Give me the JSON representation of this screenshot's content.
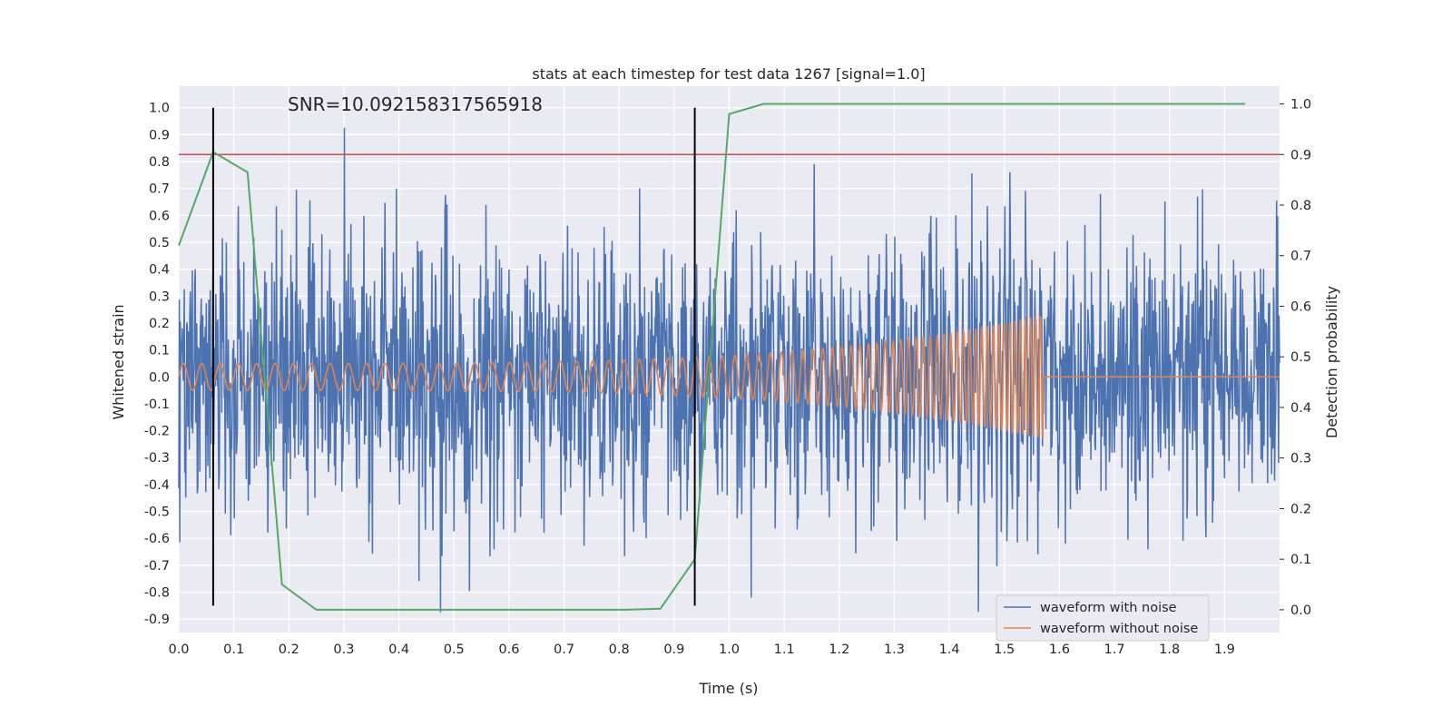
{
  "chart_data": {
    "type": "line",
    "title": "stats at each timestep for test data 1267 [signal=1.0]",
    "annotation": "SNR=10.092158317565918",
    "xlabel": "Time (s)",
    "ylabel_left": "Whitened strain",
    "ylabel_right": "Detection probability",
    "xlim": [
      0.0,
      2.0
    ],
    "ylim_left": [
      -0.95,
      1.08
    ],
    "ylim_right": [
      -0.045,
      1.035
    ],
    "x_ticks": [
      "0.0",
      "0.1",
      "0.2",
      "0.3",
      "0.4",
      "0.5",
      "0.6",
      "0.7",
      "0.8",
      "0.9",
      "1.0",
      "1.1",
      "1.2",
      "1.3",
      "1.4",
      "1.5",
      "1.6",
      "1.7",
      "1.8",
      "1.9"
    ],
    "y_ticks_left": [
      "1.0",
      "0.9",
      "0.8",
      "0.7",
      "0.6",
      "0.5",
      "0.4",
      "0.3",
      "0.2",
      "0.1",
      "0.0",
      "-0.1",
      "-0.2",
      "-0.3",
      "-0.4",
      "-0.5",
      "-0.6",
      "-0.7",
      "-0.8",
      "-0.9"
    ],
    "y_ticks_right": [
      "1.0",
      "0.9",
      "0.8",
      "0.7",
      "0.6",
      "0.5",
      "0.4",
      "0.3",
      "0.2",
      "0.1",
      "0.0"
    ],
    "grid": true,
    "legend_position": "lower-right",
    "series": [
      {
        "name": "waveform with noise",
        "color": "#4c72b0",
        "axis": "left",
        "kind": "noise",
        "noise_std": 0.25,
        "t_end": 2.0
      },
      {
        "name": "waveform without noise",
        "color": "#dd8452",
        "axis": "left",
        "kind": "chirp",
        "t_end": 1.57,
        "amp_start": 0.05,
        "amp_end": 0.23,
        "freq_start": 30,
        "freq_end": 115
      },
      {
        "name": "",
        "color": "#55a868",
        "axis": "right",
        "kind": "probability",
        "points": [
          [
            0.0,
            0.72
          ],
          [
            0.0625,
            0.905
          ],
          [
            0.125,
            0.865
          ],
          [
            0.1875,
            0.05
          ],
          [
            0.25,
            0.0
          ],
          [
            0.3125,
            0.0
          ],
          [
            0.4375,
            0.0
          ],
          [
            0.5625,
            0.0
          ],
          [
            0.6875,
            0.0
          ],
          [
            0.8125,
            0.0
          ],
          [
            0.875,
            0.002
          ],
          [
            0.9375,
            0.1
          ],
          [
            1.0,
            0.98
          ],
          [
            1.0625,
            1.0
          ],
          [
            1.25,
            1.0
          ],
          [
            1.5,
            1.0
          ],
          [
            1.75,
            1.0
          ],
          [
            1.9375,
            1.0
          ]
        ]
      }
    ],
    "threshold": {
      "axis": "right",
      "value": 0.9,
      "color": "#c44e52"
    },
    "event_markers": {
      "x": [
        0.0625,
        0.9375
      ],
      "y_range": [
        -0.85,
        1.0
      ],
      "color": "#000000"
    }
  }
}
